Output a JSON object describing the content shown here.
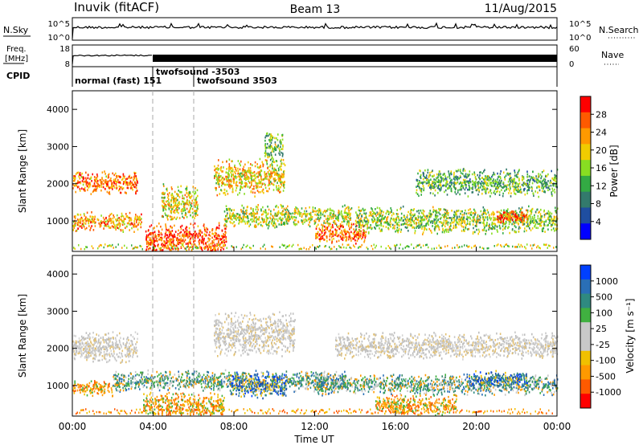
{
  "header": {
    "station": "Inuvik (fitACF)",
    "beam": "Beam 13",
    "date": "11/Aug/2015"
  },
  "aux": {
    "nsky_label": "N.Sky",
    "nsearch_label": "N.Search",
    "nsky_ticks": [
      "10^5",
      "10^0"
    ],
    "nsearch_ticks": [
      "10^5",
      "10^0"
    ],
    "freq_label_1": "Freq.",
    "freq_label_2": "[MHz]",
    "freq_ticks": [
      "18",
      "8"
    ],
    "nave_label": "Nave",
    "nave_ticks": [
      "60",
      "0"
    ],
    "cpid_label": "CPID",
    "cpid_segments": [
      {
        "label": "normal (fast) 151",
        "start_hour": 0
      },
      {
        "label": "twofsound -3503",
        "start_hour": 4
      },
      {
        "label": "twofsound 3503",
        "start_hour": 6
      }
    ]
  },
  "chart_data": [
    {
      "type": "heatmap",
      "name": "power",
      "ylabel": "Slant Range [km]",
      "xlabel": "",
      "ylim": [
        180,
        4500
      ],
      "xlim": [
        0,
        24
      ],
      "yticks": [
        "1000",
        "2000",
        "3000",
        "4000"
      ],
      "colorbar_label": "Power [dB]",
      "colorbar_ticks": [
        "28",
        "24",
        "20",
        "16",
        "12",
        "8",
        "4"
      ],
      "colorbar_colors": [
        "#ff0000",
        "#ff5a00",
        "#ff9900",
        "#f0cc00",
        "#88dd22",
        "#33aa44",
        "#337a6c",
        "#1f4ea0",
        "#0000ff"
      ],
      "scatter_bands": [
        {
          "start": 0,
          "end": 3.4,
          "y": 1000,
          "spread": 180,
          "level": 0.75
        },
        {
          "start": 0,
          "end": 3.2,
          "y": 2050,
          "spread": 220,
          "level": 0.8
        },
        {
          "start": 3.6,
          "end": 7.6,
          "y": 520,
          "spread": 320,
          "level": 0.9
        },
        {
          "start": 4.4,
          "end": 6.2,
          "y": 1500,
          "spread": 350,
          "level": 0.6
        },
        {
          "start": 7.0,
          "end": 10.5,
          "y": 2200,
          "spread": 350,
          "level": 0.65
        },
        {
          "start": 7.5,
          "end": 13.8,
          "y": 1150,
          "spread": 220,
          "level": 0.55
        },
        {
          "start": 12.0,
          "end": 14.5,
          "y": 700,
          "spread": 200,
          "level": 0.85
        },
        {
          "start": 14.0,
          "end": 24,
          "y": 1050,
          "spread": 260,
          "level": 0.5
        },
        {
          "start": 17.0,
          "end": 24,
          "y": 2050,
          "spread": 260,
          "level": 0.4
        },
        {
          "start": 9.5,
          "end": 10.4,
          "y": 3000,
          "spread": 300,
          "level": 0.45
        },
        {
          "start": 21.0,
          "end": 22.5,
          "y": 1150,
          "spread": 150,
          "level": 0.85
        }
      ]
    },
    {
      "type": "heatmap",
      "name": "velocity",
      "ylabel": "Slant Range [km]",
      "xlabel": "Time UT",
      "ylim": [
        180,
        4500
      ],
      "xlim": [
        0,
        24
      ],
      "xticks": [
        "00:00",
        "04:00",
        "08:00",
        "12:00",
        "16:00",
        "20:00",
        "00:00"
      ],
      "yticks": [
        "1000",
        "2000",
        "3000",
        "4000"
      ],
      "colorbar_label": "Velocity [m s⁻¹]",
      "colorbar_ticks": [
        "1000",
        "500",
        "100",
        "25",
        "-25",
        "-100",
        "-500",
        "-1000"
      ],
      "colorbar_colors": [
        "#0040ff",
        "#2a6fb6",
        "#2f8a80",
        "#40b040",
        "#c8c8c8",
        "#c8c8c8",
        "#f0c000",
        "#ff9900",
        "#ff5a00",
        "#ff0000"
      ],
      "scatter_bands": [
        {
          "start": 0,
          "end": 3.2,
          "y": 2050,
          "spread": 300,
          "kind": "gray"
        },
        {
          "start": 0,
          "end": 2.0,
          "y": 950,
          "spread": 150,
          "kind": "orange"
        },
        {
          "start": 2.0,
          "end": 13.5,
          "y": 1150,
          "spread": 200,
          "kind": "green"
        },
        {
          "start": 7.8,
          "end": 10.6,
          "y": 1050,
          "spread": 250,
          "kind": "blue"
        },
        {
          "start": 7.0,
          "end": 11.0,
          "y": 2400,
          "spread": 420,
          "kind": "gray"
        },
        {
          "start": 3.5,
          "end": 7.5,
          "y": 500,
          "spread": 250,
          "kind": "orange"
        },
        {
          "start": 12.0,
          "end": 24,
          "y": 1050,
          "spread": 200,
          "kind": "green"
        },
        {
          "start": 19.5,
          "end": 22.5,
          "y": 1200,
          "spread": 150,
          "kind": "blue"
        },
        {
          "start": 13.0,
          "end": 24,
          "y": 2100,
          "spread": 250,
          "kind": "gray"
        },
        {
          "start": 15.0,
          "end": 19.0,
          "y": 500,
          "spread": 200,
          "kind": "orange"
        }
      ]
    }
  ]
}
